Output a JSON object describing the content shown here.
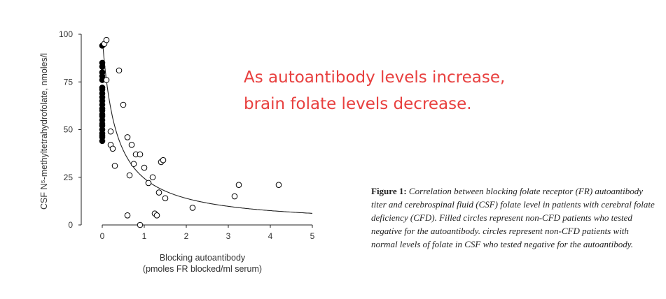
{
  "annotation": {
    "line1": "As autoantibody levels increase,",
    "line2": "brain folate levels decrease.",
    "color": "#e8403f"
  },
  "caption": {
    "label": "Figure 1:",
    "text": "Correlation between blocking folate receptor (FR) autoantibody titer and cerebrospinal fluid (CSF) folate level in patients with cerebral folate deficiency (CFD). Filled circles represent non-CFD patients who tested negative for the autoantibody. circles represent non-CFD patients with normal levels of folate in CSF who tested negative for the autoantibody."
  },
  "chart_data": {
    "type": "scatter",
    "xlabel_line1": "Blocking autoantibody",
    "xlabel_line2": "(pmoles FR blocked/ml serum)",
    "ylabel": "CSF N⁵-methyltetrahydrofolate, nmoles/l",
    "xlim": [
      -0.5,
      5
    ],
    "ylim": [
      0,
      100
    ],
    "xticks": [
      0,
      1,
      2,
      3,
      4,
      5
    ],
    "yticks": [
      0,
      25,
      50,
      75,
      100
    ],
    "grid": false,
    "series": [
      {
        "marker": "filled",
        "x": [
          0,
          0,
          0,
          0,
          0,
          0,
          0,
          0,
          0,
          0,
          0,
          0,
          0,
          0,
          0,
          0,
          0,
          0,
          0,
          0,
          0,
          0,
          0,
          0
        ],
        "y": [
          94,
          85,
          83,
          80,
          78,
          76,
          72,
          71,
          69,
          67,
          65,
          63,
          61,
          60,
          58,
          57,
          55,
          53,
          52,
          50,
          48,
          47,
          46,
          44
        ]
      },
      {
        "marker": "open",
        "x": [
          0.05,
          0.1,
          0.1,
          0.2,
          0.2,
          0.25,
          0.3,
          0.4,
          0.5,
          0.6,
          0.6,
          0.65,
          0.7,
          0.75,
          0.8,
          0.9,
          1.0,
          1.1,
          1.2,
          1.25,
          1.3,
          1.35,
          1.4,
          1.45,
          1.5,
          2.15,
          3.15,
          3.25,
          4.2,
          0.9
        ],
        "y": [
          95,
          97,
          76,
          49,
          42,
          40,
          31,
          81,
          63,
          46,
          5,
          26,
          42,
          32,
          37,
          37,
          30,
          22,
          25,
          6,
          5,
          17,
          33,
          34,
          14,
          9,
          15,
          21,
          21,
          0
        ],
        "note_x_source": "approx"
      }
    ],
    "fit_curve": true
  }
}
